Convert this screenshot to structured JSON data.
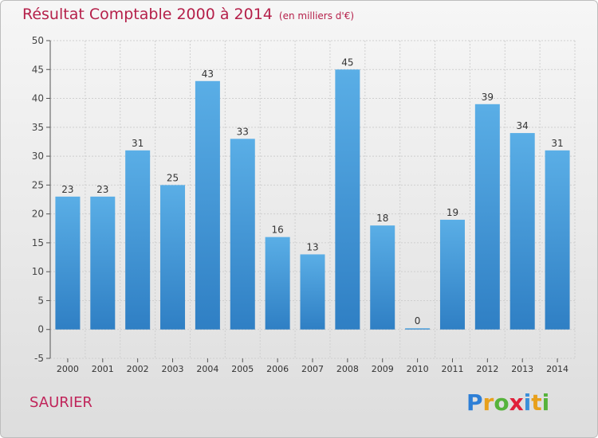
{
  "title": "Résultat Comptable 2000 à 2014",
  "unit": "(en milliers d'€)",
  "commune": "SAURIER",
  "logo": {
    "letters": [
      "P",
      "r",
      "o",
      "x",
      "i",
      "t",
      "i"
    ],
    "colors": [
      "#2e7fd6",
      "#e8a01c",
      "#56b33b",
      "#e0203a",
      "#3b8fd9",
      "#e8a01c",
      "#56b33b"
    ]
  },
  "chart_data": {
    "type": "bar",
    "title": "Résultat Comptable 2000 à 2014",
    "subtitle": "(en milliers d'€)",
    "xlabel": "",
    "ylabel": "",
    "categories": [
      "2000",
      "2001",
      "2002",
      "2003",
      "2004",
      "2005",
      "2006",
      "2007",
      "2008",
      "2009",
      "2010",
      "2011",
      "2012",
      "2013",
      "2014"
    ],
    "values": [
      23,
      23,
      31,
      25,
      43,
      33,
      16,
      13,
      45,
      18,
      0,
      19,
      39,
      34,
      31
    ],
    "ylim": [
      -5,
      50
    ],
    "yticks": [
      -5,
      0,
      5,
      10,
      15,
      20,
      25,
      30,
      35,
      40,
      45,
      50
    ],
    "grid": true,
    "bar_color": "#4a9ad8"
  }
}
